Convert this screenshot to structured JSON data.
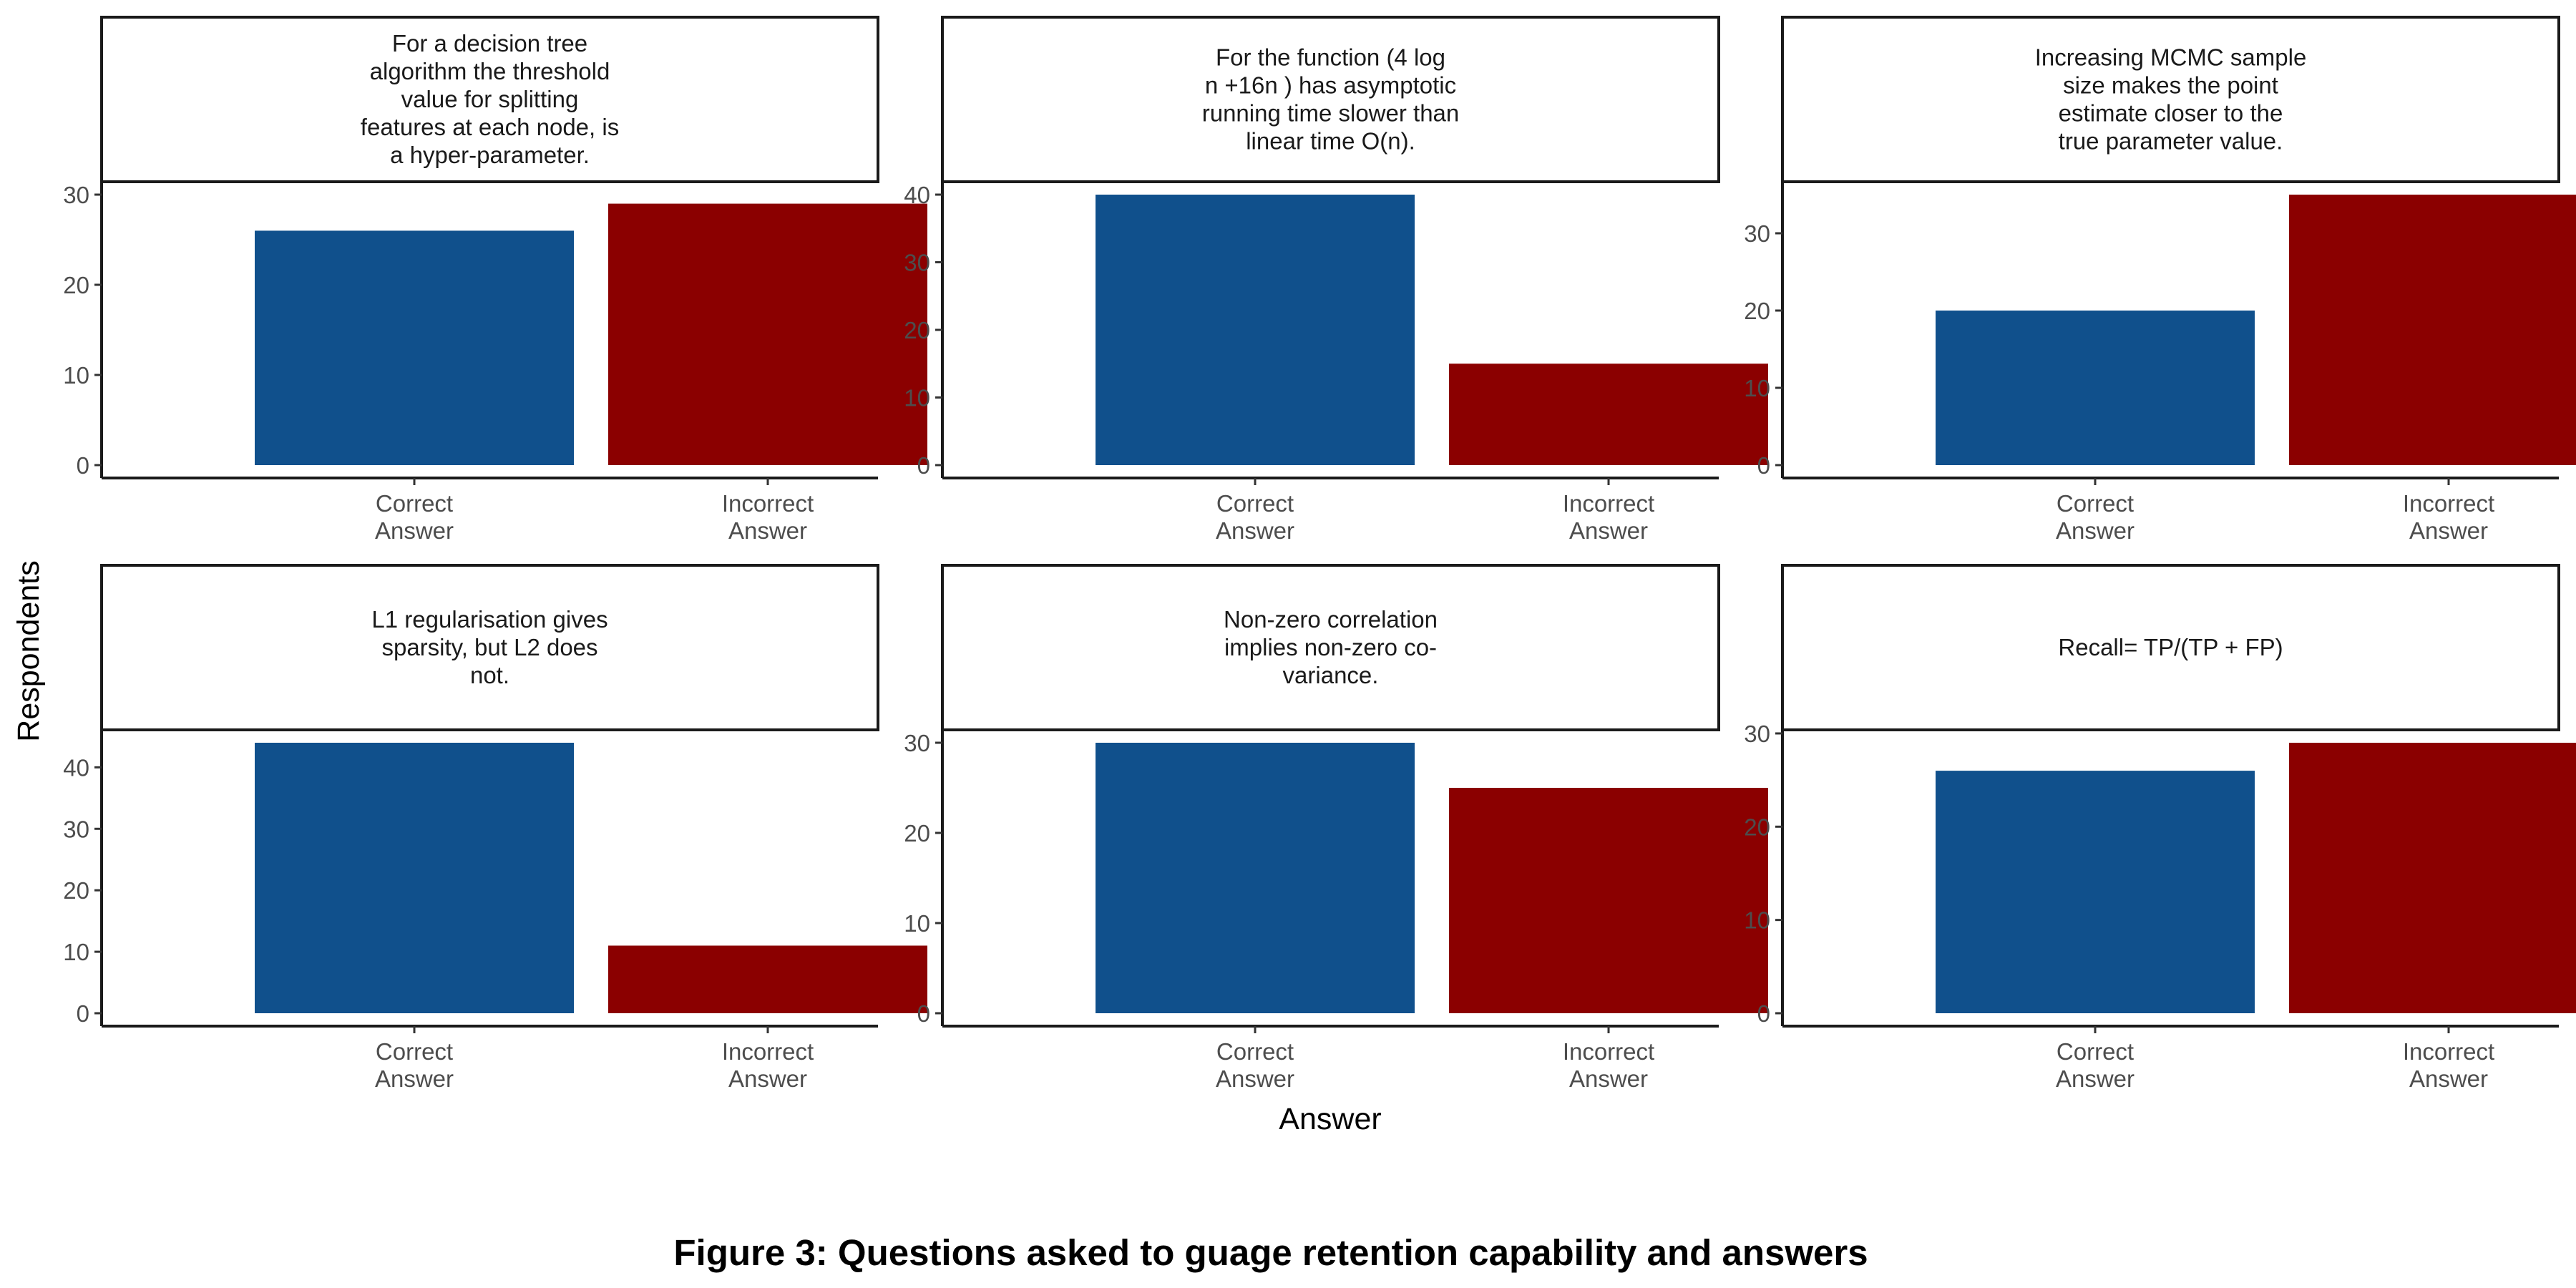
{
  "figure": {
    "caption": "Figure 3: Questions asked to guage retention capability and answers",
    "xlabel": "Answer",
    "ylabel": "Respondents"
  },
  "colors": {
    "correct": "#10508c",
    "incorrect": "#8b0000"
  },
  "chart_data": {
    "type": "bar",
    "categories": [
      [
        "Correct",
        "Answer"
      ],
      [
        "Incorrect",
        "Answer"
      ]
    ],
    "xlabel": "Answer",
    "ylabel": "Respondents",
    "grid": false,
    "legend": "none",
    "panels": [
      {
        "title_lines": [
          "For a decision tree",
          "algorithm the threshold",
          "value for splitting",
          "features at each node, is",
          "a hyper-parameter."
        ],
        "values": [
          26,
          29
        ],
        "ylim": [
          0,
          30
        ],
        "yticks": [
          0,
          10,
          20,
          30
        ]
      },
      {
        "title_lines": [
          "For the function (4 log",
          "n +16n ) has asymptotic",
          "running time slower than",
          "linear time O(n)."
        ],
        "values": [
          40,
          15
        ],
        "ylim": [
          0,
          40
        ],
        "yticks": [
          0,
          10,
          20,
          30,
          40
        ]
      },
      {
        "title_lines": [
          "Increasing MCMC sample",
          "size makes the point",
          "estimate closer to the",
          "true parameter value."
        ],
        "values": [
          20,
          35
        ],
        "ylim": [
          0,
          35
        ],
        "yticks": [
          0,
          10,
          20,
          30
        ]
      },
      {
        "title_lines": [
          "L1 regularisation gives",
          "sparsity, but L2 does",
          "not."
        ],
        "values": [
          44,
          11
        ],
        "ylim": [
          0,
          44
        ],
        "yticks": [
          0,
          10,
          20,
          30,
          40
        ]
      },
      {
        "title_lines": [
          "Non-zero correlation",
          "implies non-zero co-",
          "variance."
        ],
        "values": [
          30,
          25
        ],
        "ylim": [
          0,
          30
        ],
        "yticks": [
          0,
          10,
          20,
          30
        ]
      },
      {
        "title_lines": [
          "Recall= TP/(TP + FP)"
        ],
        "values": [
          26,
          29
        ],
        "ylim": [
          0,
          29
        ],
        "yticks": [
          0,
          10,
          20,
          30
        ]
      }
    ]
  }
}
